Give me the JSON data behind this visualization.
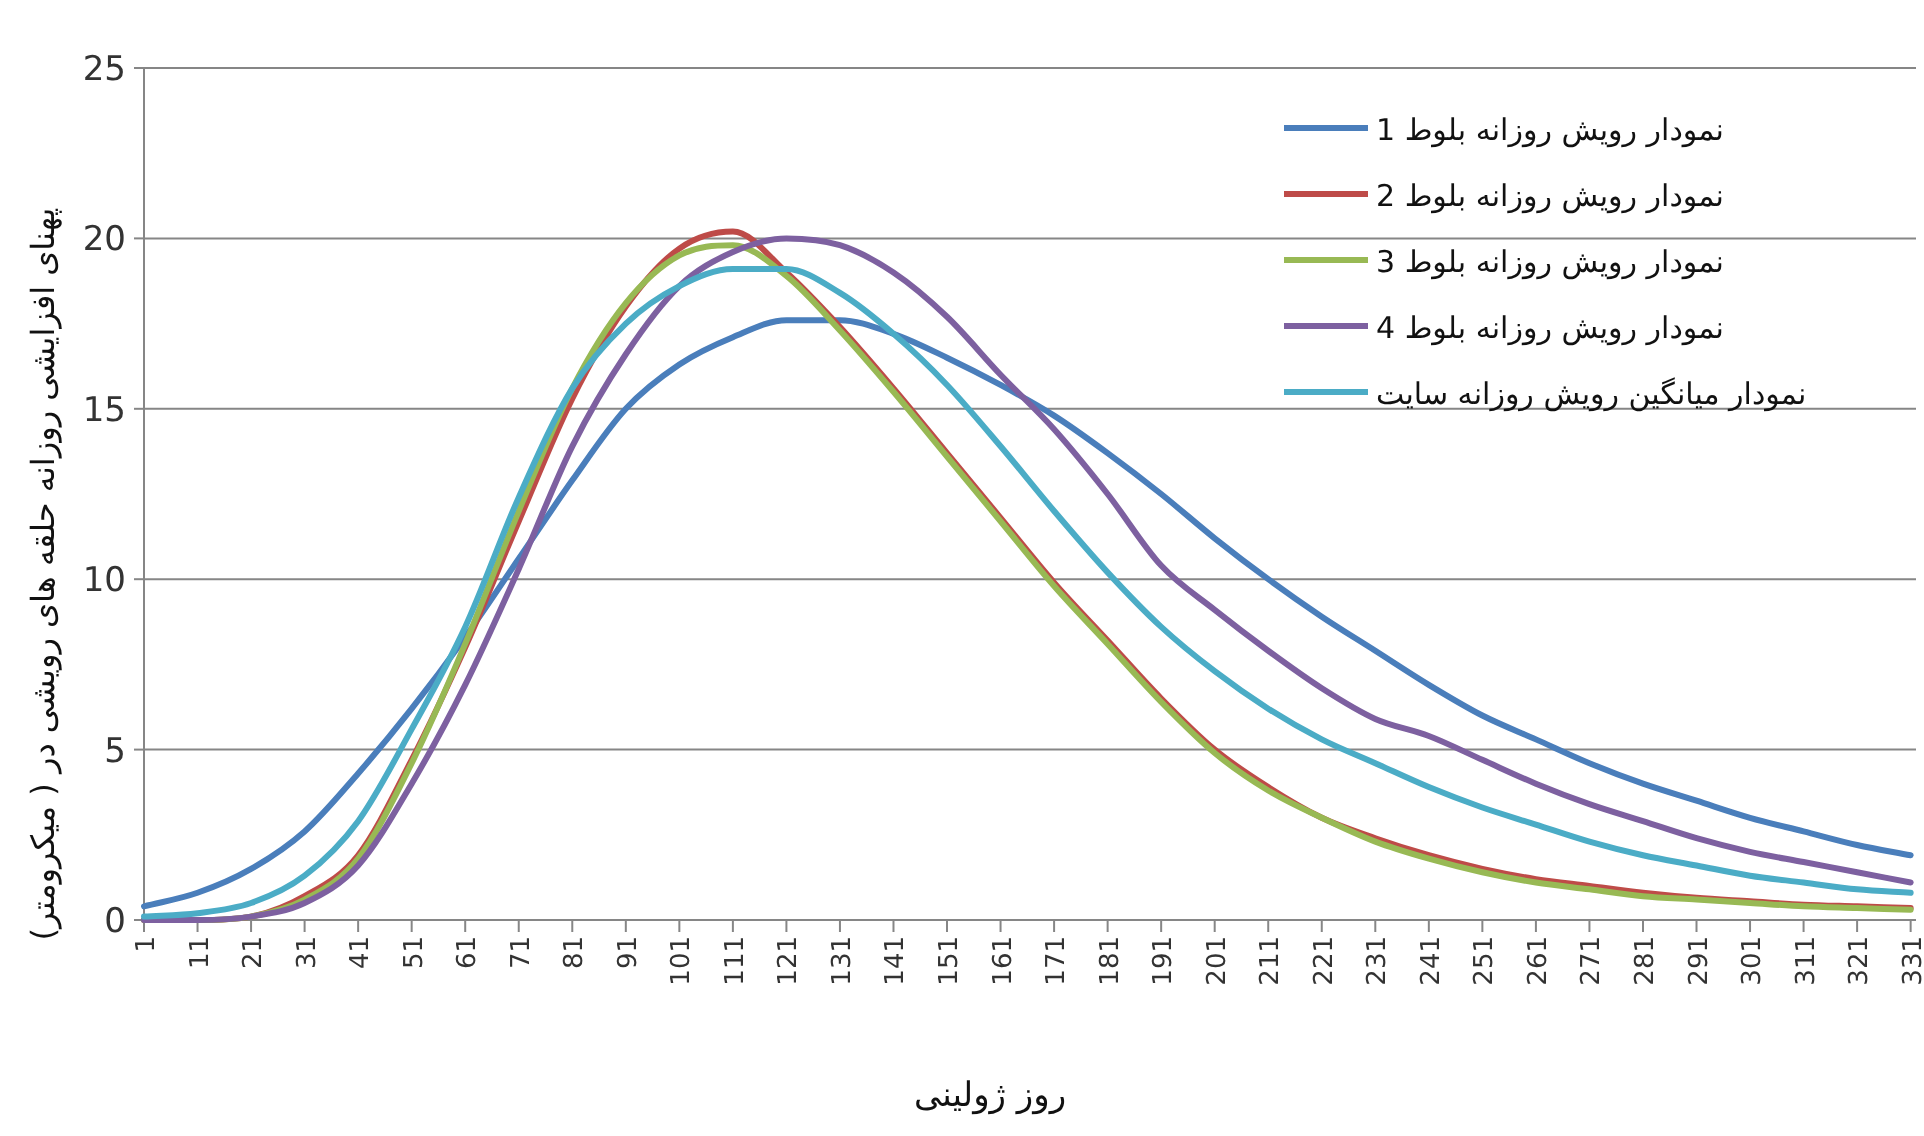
{
  "chart_data": {
    "type": "line",
    "ylabel": "پهنای افزایشی روزانه حلقه های رویشی در ( میکرومتر)",
    "xlabel": "روز ژولینی",
    "x": [
      1,
      11,
      21,
      31,
      41,
      51,
      61,
      71,
      81,
      91,
      101,
      111,
      121,
      131,
      141,
      151,
      161,
      171,
      181,
      191,
      201,
      211,
      221,
      231,
      241,
      251,
      261,
      271,
      281,
      291,
      301,
      311,
      321,
      331
    ],
    "xlim": [
      1,
      332
    ],
    "xticks": [
      1,
      11,
      21,
      31,
      41,
      51,
      61,
      71,
      81,
      91,
      101,
      111,
      121,
      131,
      141,
      151,
      161,
      171,
      181,
      191,
      201,
      211,
      221,
      231,
      241,
      251,
      261,
      271,
      281,
      291,
      301,
      311,
      321,
      331
    ],
    "ylim": [
      0,
      25
    ],
    "yticks": [
      0,
      5,
      10,
      15,
      20,
      25
    ],
    "grid": "y",
    "legend": "top right",
    "series": [
      {
        "name": "نمودار رویش روزانه بلوط 1",
        "color": "#4a7ebb",
        "values": [
          0.4,
          0.8,
          1.5,
          2.6,
          4.3,
          6.2,
          8.3,
          10.6,
          12.9,
          15.0,
          16.3,
          17.1,
          17.6,
          17.6,
          17.2,
          16.5,
          15.7,
          14.8,
          13.7,
          12.5,
          11.2,
          10.0,
          8.9,
          7.9,
          6.9,
          6.0,
          5.3,
          4.6,
          4.0,
          3.5,
          3.0,
          2.6,
          2.2,
          1.9
        ]
      },
      {
        "name": "نمودار رویش روزانه بلوط 2",
        "color": "#be4b48",
        "values": [
          0,
          0,
          0.1,
          0.7,
          1.9,
          4.7,
          8.0,
          11.7,
          15.3,
          18.0,
          19.7,
          20.2,
          19.0,
          17.4,
          15.6,
          13.7,
          11.8,
          9.9,
          8.2,
          6.5,
          5.0,
          3.9,
          3.0,
          2.4,
          1.9,
          1.5,
          1.2,
          1.0,
          0.8,
          0.65,
          0.55,
          0.45,
          0.4,
          0.35
        ]
      },
      {
        "name": "نمودار رویش روزانه بلوط 3",
        "color": "#98b954",
        "values": [
          0,
          0,
          0.1,
          0.6,
          1.8,
          4.6,
          8.1,
          12.0,
          15.6,
          18.1,
          19.5,
          19.8,
          18.9,
          17.3,
          15.5,
          13.6,
          11.7,
          9.8,
          8.1,
          6.4,
          4.9,
          3.8,
          3.0,
          2.3,
          1.8,
          1.4,
          1.1,
          0.9,
          0.7,
          0.6,
          0.5,
          0.4,
          0.35,
          0.3
        ]
      },
      {
        "name": "نمودار رویش روزانه بلوط 4",
        "color": "#7d60a0",
        "values": [
          0,
          0,
          0.1,
          0.5,
          1.6,
          4.0,
          6.9,
          10.3,
          13.9,
          16.6,
          18.6,
          19.6,
          20.0,
          19.8,
          19.0,
          17.7,
          16.0,
          14.4,
          12.5,
          10.4,
          9.1,
          7.9,
          6.8,
          5.9,
          5.4,
          4.7,
          4.0,
          3.4,
          2.9,
          2.4,
          2.0,
          1.7,
          1.4,
          1.1
        ]
      },
      {
        "name": "نمودار میانگین رویش روزانه سایت",
        "color": "#4bacc6",
        "values": [
          0.1,
          0.2,
          0.5,
          1.3,
          2.9,
          5.6,
          8.6,
          12.4,
          15.6,
          17.5,
          18.6,
          19.1,
          19.1,
          18.4,
          17.2,
          15.7,
          13.9,
          12.0,
          10.2,
          8.6,
          7.3,
          6.2,
          5.3,
          4.6,
          3.9,
          3.3,
          2.8,
          2.3,
          1.9,
          1.6,
          1.3,
          1.1,
          0.9,
          0.8
        ]
      }
    ]
  }
}
